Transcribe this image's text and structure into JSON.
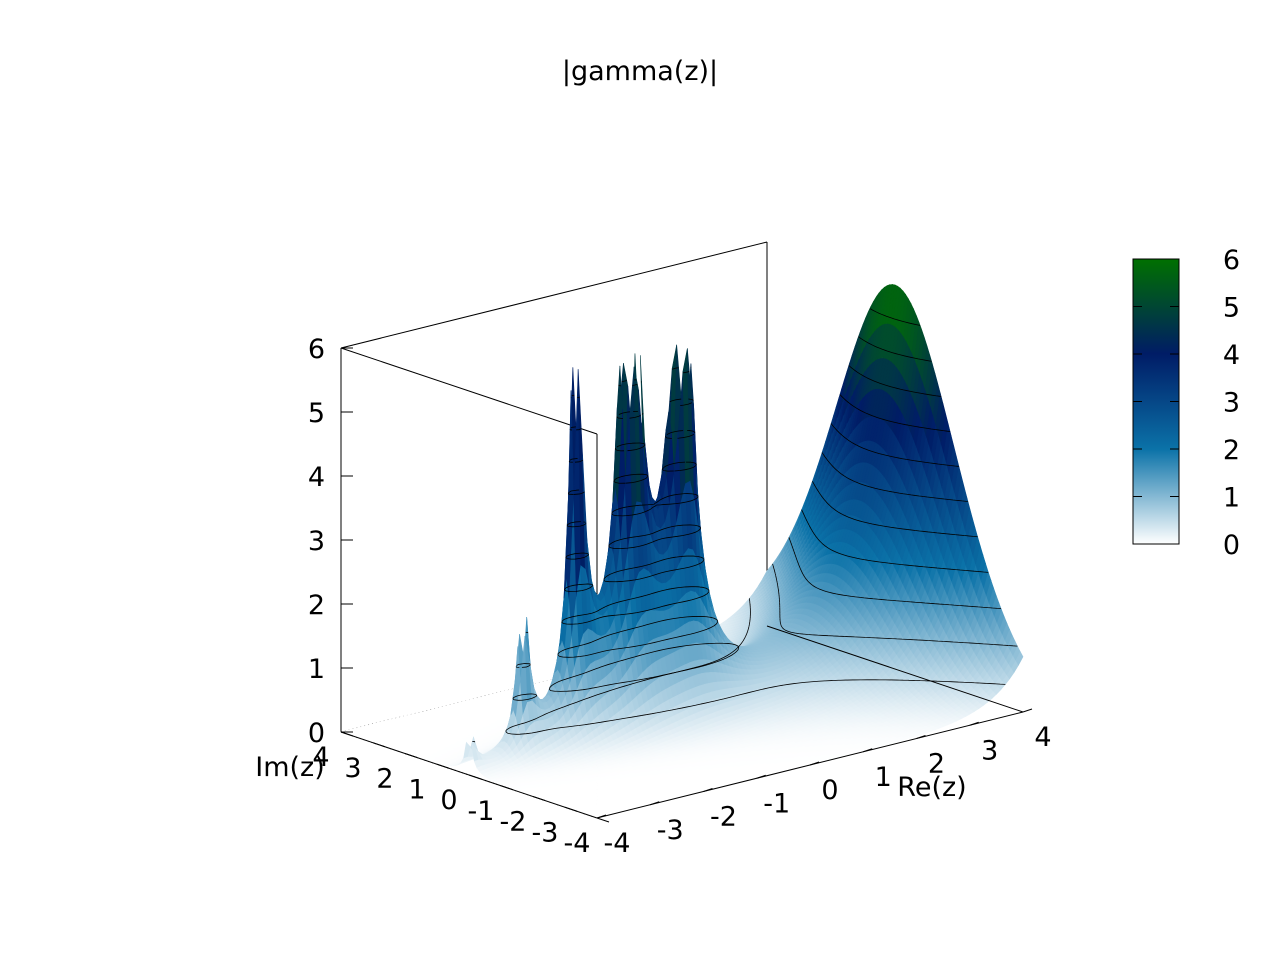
{
  "chart_data": {
    "type": "surface",
    "function": "|gamma(z)|",
    "title": "|gamma(z)|",
    "xlabel": "Re(z)",
    "ylabel": "Im(z)",
    "zlabel": "",
    "xlim": [
      -4,
      4
    ],
    "ylim": [
      -4,
      4
    ],
    "zlim": [
      0,
      6
    ],
    "x_ticks": [
      "-4",
      "-3",
      "-2",
      "-1",
      "0",
      "1",
      "2",
      "3",
      "4"
    ],
    "y_ticks": [
      "-4",
      "-3",
      "-2",
      "-1",
      "0",
      "1",
      "2",
      "3",
      "4"
    ],
    "z_ticks": [
      "0",
      "1",
      "2",
      "3",
      "4",
      "5",
      "6"
    ],
    "colorbar": {
      "ticks": [
        "0",
        "1",
        "2",
        "3",
        "4",
        "5",
        "6"
      ],
      "range": [
        0,
        6
      ],
      "colors": [
        "#ffffff",
        "#0b72a8",
        "#001c66",
        "#007000"
      ]
    },
    "contour_levels": [
      0.5,
      1,
      1.5,
      2,
      2.5,
      3,
      3.5,
      4,
      4.5,
      5,
      5.5
    ],
    "poles_re": [
      0,
      -1,
      -2,
      -3,
      -4
    ],
    "clipped_at": 6
  }
}
